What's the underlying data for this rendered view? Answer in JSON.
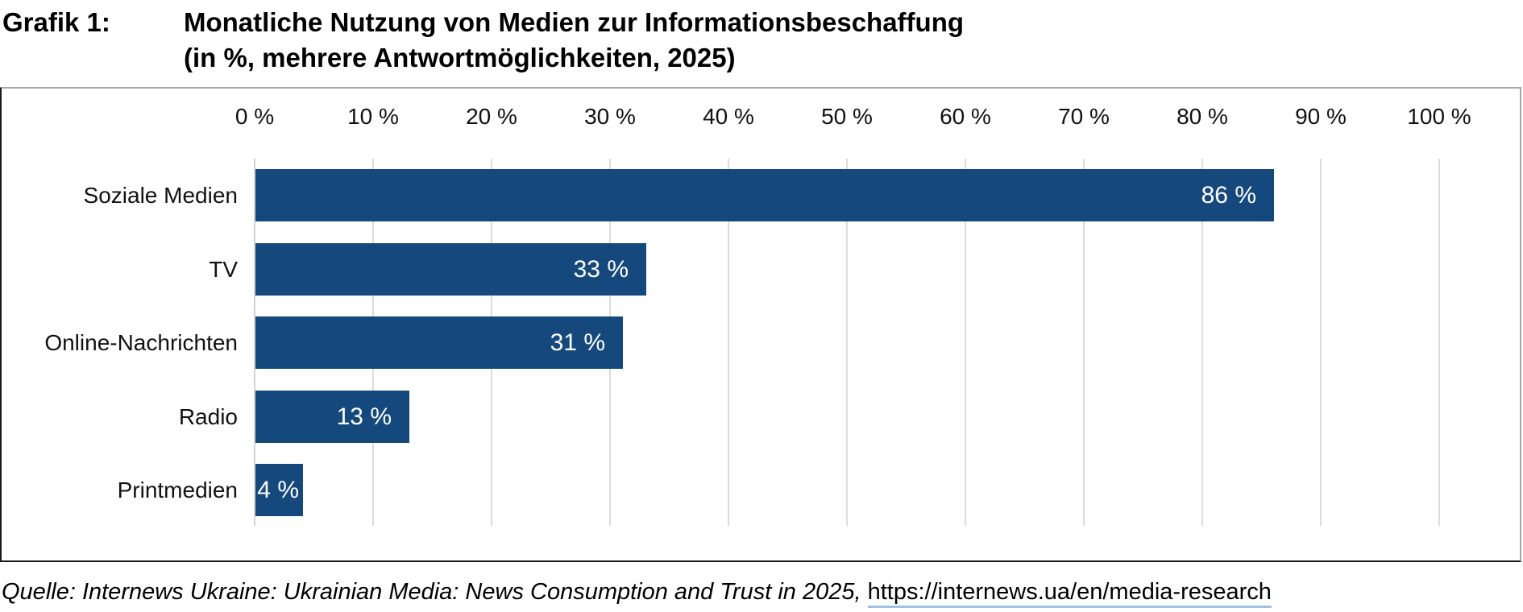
{
  "header": {
    "prefix": "Grafik 1:",
    "title_line1": "Monatliche Nutzung von Medien zur Informationsbeschaffung",
    "title_line2": "(in %, mehrere Antwortmöglichkeiten, 2025)"
  },
  "chart_data": {
    "type": "bar",
    "orientation": "horizontal",
    "title": "Monatliche Nutzung von Medien zur Informationsbeschaffung (in %, mehrere Antwortmöglichkeiten, 2025)",
    "categories": [
      "Soziale Medien",
      "TV",
      "Online-Nachrichten",
      "Radio",
      "Printmedien"
    ],
    "values": [
      86,
      33,
      31,
      13,
      4
    ],
    "value_labels": [
      "86 %",
      "33 %",
      "31 %",
      "13 %",
      "4 %"
    ],
    "x_ticks": [
      0,
      10,
      20,
      30,
      40,
      50,
      60,
      70,
      80,
      90,
      100
    ],
    "x_tick_labels": [
      "0 %",
      "10 %",
      "20 %",
      "30 %",
      "40 %",
      "50 %",
      "60 %",
      "70 %",
      "80 %",
      "90 %",
      "100 %"
    ],
    "xlim": [
      0,
      107
    ],
    "grid": true,
    "legend": "none",
    "bar_color": "#15497D"
  },
  "source": {
    "text_italic": "Quelle: Internews Ukraine: Ukrainian Media: News Consumption and Trust in 2025,",
    "link_text": "https://internews.ua/en/media-research"
  },
  "colors": {
    "bar": "#15497D",
    "gridline": "#DCDCDC",
    "frame_light": "#A6A6A6",
    "frame_dark": "#1A1A1A",
    "link_underline": "#9CC2E5",
    "value_text": "#FFFFFF"
  }
}
